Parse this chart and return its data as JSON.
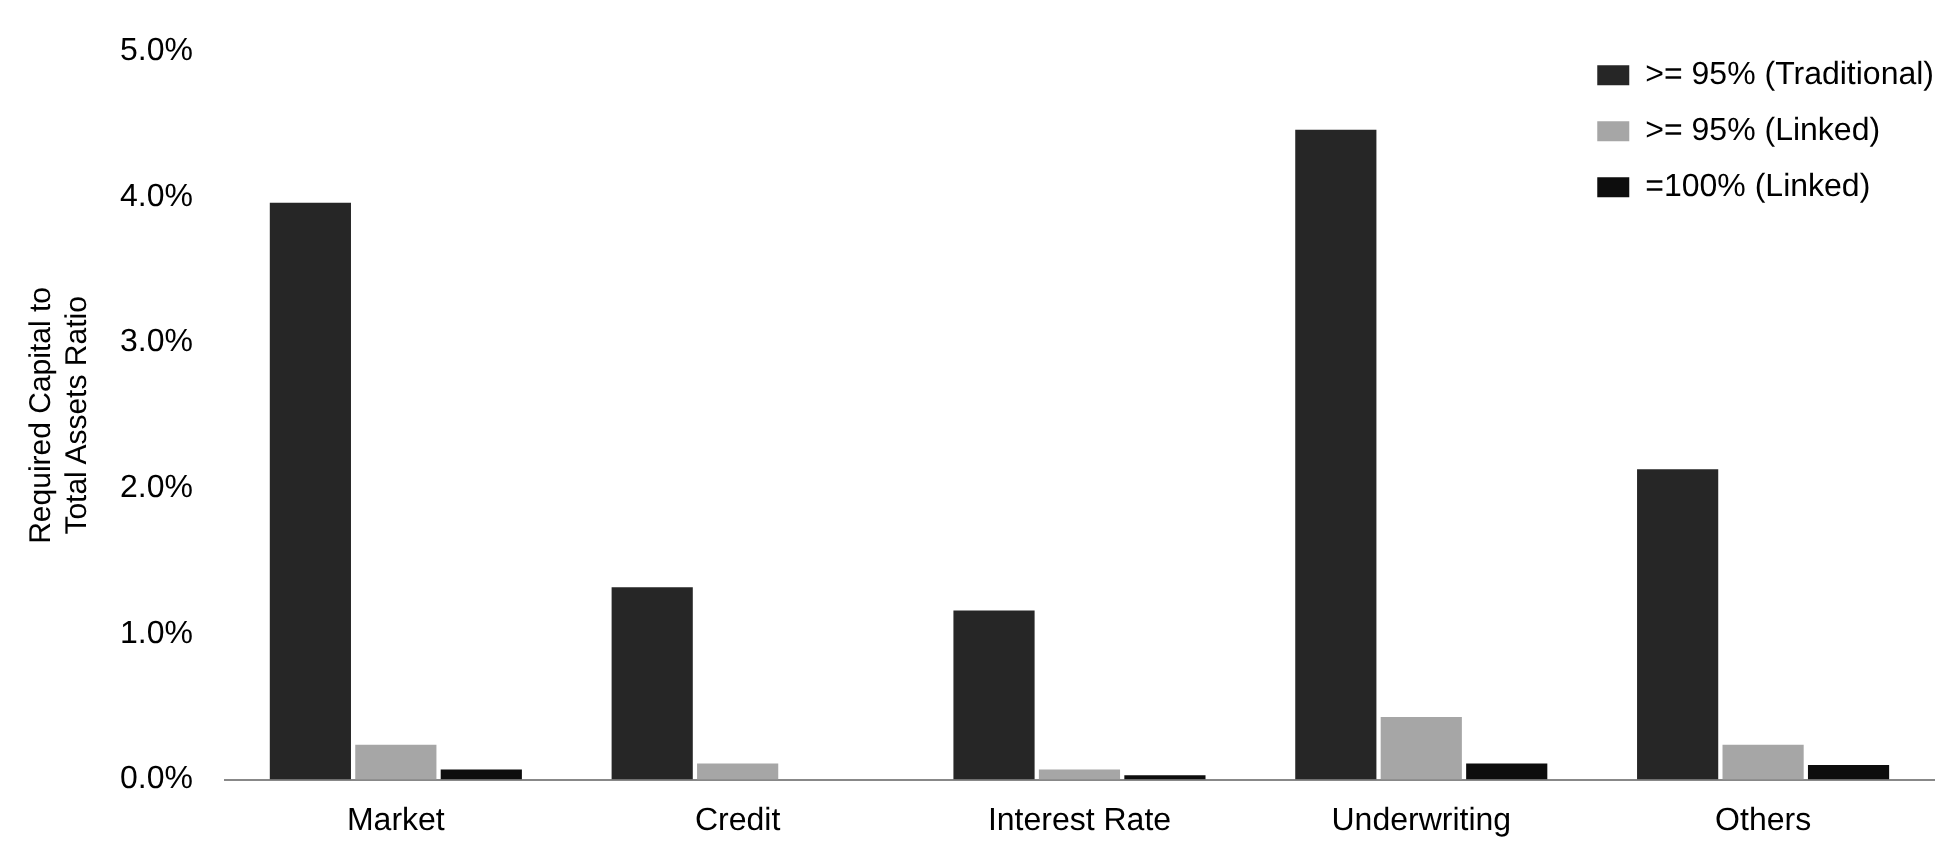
{
  "chart_data": {
    "type": "bar",
    "ylabel": "Required Capital to Total Assets Ratio",
    "categories": [
      "Market",
      "Credit",
      "Interest Rate",
      "Underwriting",
      "Others"
    ],
    "series": [
      {
        "name": ">= 95% (Traditional)",
        "color": "#262626",
        "values": [
          3.96,
          1.32,
          1.16,
          4.46,
          2.13
        ]
      },
      {
        "name": ">= 95% (Linked)",
        "color": "#a6a6a6",
        "values": [
          0.24,
          0.11,
          0.07,
          0.43,
          0.24
        ]
      },
      {
        "name": "=100% (Linked)",
        "color": "#0d0d0d",
        "values": [
          0.07,
          0,
          0.03,
          0.11,
          0.1
        ]
      }
    ],
    "ylim": [
      0,
      5
    ],
    "yticks": [
      {
        "value": 0,
        "label": "0.0%"
      },
      {
        "value": 1,
        "label": "1.0%"
      },
      {
        "value": 2,
        "label": "2.0%"
      },
      {
        "value": 3,
        "label": "3.0%"
      },
      {
        "value": 4,
        "label": "4.0%"
      },
      {
        "value": 5,
        "label": "5.0%"
      }
    ],
    "grid": false,
    "legend": "top right"
  }
}
